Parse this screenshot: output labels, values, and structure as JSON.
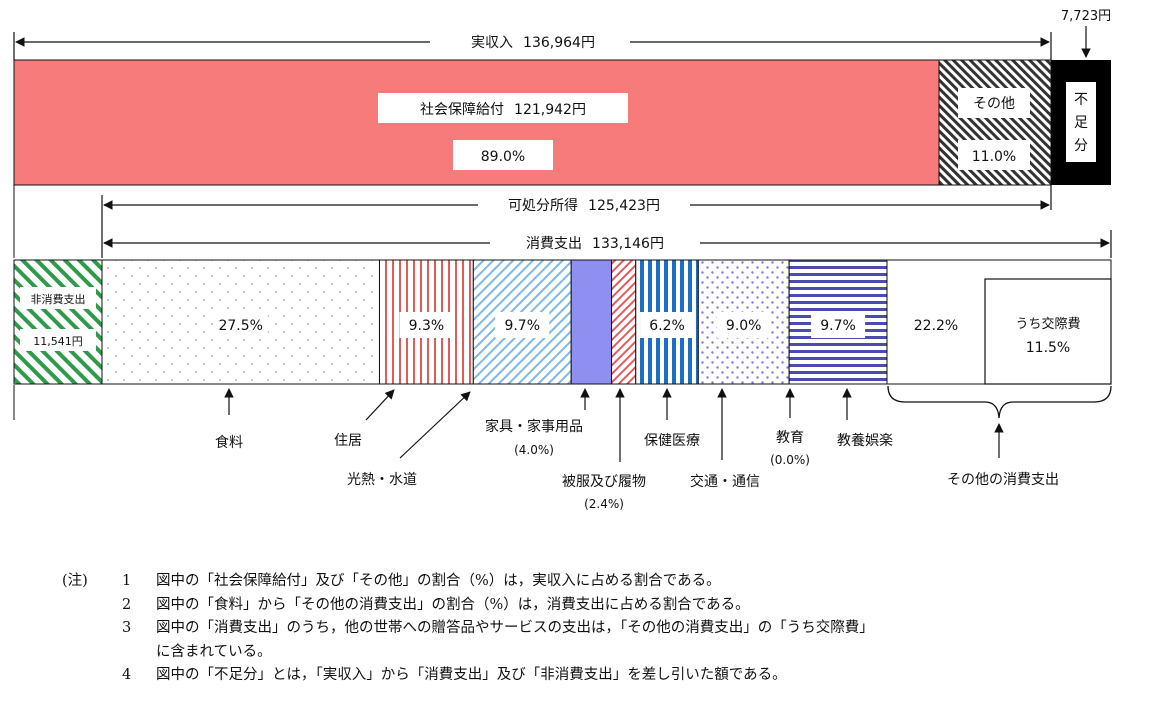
{
  "chart_data": {
    "type": "bar",
    "title": "",
    "income": {
      "label": "実収入",
      "amount": "136,964円",
      "segments": [
        {
          "name": "社会保障給付",
          "amount": "121,942円",
          "percent": "89.0%",
          "value": 89.0
        },
        {
          "name": "その他",
          "amount": "",
          "percent": "11.0%",
          "value": 11.0
        }
      ],
      "shortfall": {
        "name": "不足分",
        "amount": "7,723円"
      }
    },
    "disposable_income": {
      "label": "可処分所得",
      "amount": "125,423円"
    },
    "consumption": {
      "label": "消費支出",
      "amount": "133,146円"
    },
    "non_consumption": {
      "label": "非消費支出",
      "amount": "11,541円"
    },
    "expenditure_segments": [
      {
        "name": "食料",
        "percent": "27.5%",
        "value": 27.5
      },
      {
        "name": "住居",
        "percent": "9.3%",
        "value": 9.3
      },
      {
        "name": "光熱・水道",
        "percent": "9.7%",
        "value": 9.7
      },
      {
        "name": "家具・家事用品",
        "percent": "(4.0%)",
        "value": 4.0
      },
      {
        "name": "被服及び履物",
        "percent": "(2.4%)",
        "value": 2.4
      },
      {
        "name": "保健医療",
        "percent": "6.2%",
        "value": 6.2
      },
      {
        "name": "交通・通信",
        "percent": "9.0%",
        "value": 9.0
      },
      {
        "name": "教育",
        "percent": "(0.0%)",
        "value": 0.0
      },
      {
        "name": "教養娯楽",
        "percent": "9.7%",
        "value": 9.7
      },
      {
        "name": "その他の消費支出",
        "percent": "22.2%",
        "value": 22.2,
        "sub": {
          "name": "うち交際費",
          "percent": "11.5%",
          "value": 11.5
        }
      }
    ]
  },
  "notes": {
    "head": "(注)",
    "items": [
      {
        "num": "1",
        "text": "図中の「社会保障給付」及び「その他」の割合（%）は，実収入に占める割合である。"
      },
      {
        "num": "2",
        "text": "図中の「食料」から「その他の消費支出」の割合（%）は，消費支出に占める割合である。"
      },
      {
        "num": "3",
        "text": "図中の「消費支出」のうち，他の世帯への贈答品やサービスの支出は，「その他の消費支出」の「うち交際費」"
      },
      {
        "num": "",
        "text": "に含まれている。"
      },
      {
        "num": "4",
        "text": "図中の「不足分」とは，「実収入」から「消費支出」及び「非消費支出」を差し引いた額である。"
      }
    ]
  },
  "colors": {
    "social_security": "#f77b7b",
    "other_income_hatch": "#333333",
    "shortfall": "#000000",
    "non_consumption_hatch": "#2e9a4a",
    "food_dots": "#9fb8d8",
    "housing_stripes": "#e25a5a",
    "utilities_hatch": "#7fb8e8",
    "furniture": "#8f8ff2",
    "clothing_hatch": "#e25a5a",
    "health_stripes": "#1d6fc4",
    "transport_dots": "#7a7ae0",
    "culture_stripes": "#4b4bb0"
  }
}
